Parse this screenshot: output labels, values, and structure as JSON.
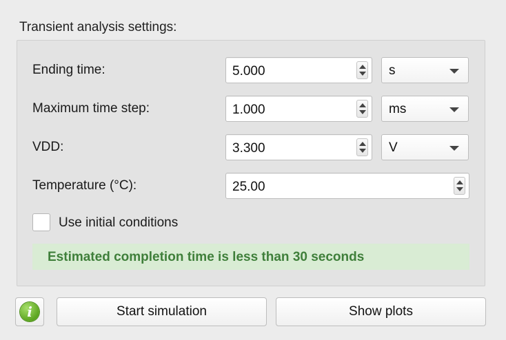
{
  "group": {
    "title": "Transient analysis settings:"
  },
  "rows": {
    "ending_time": {
      "label": "Ending time:",
      "value": "5.000",
      "unit": "s"
    },
    "max_step": {
      "label": "Maximum time step:",
      "value": "1.000",
      "unit": "ms"
    },
    "vdd": {
      "label": "VDD:",
      "value": "3.300",
      "unit": "V"
    },
    "temperature": {
      "label": "Temperature (°C):",
      "value": "25.00"
    }
  },
  "initial_conditions": {
    "label": "Use initial conditions",
    "checked": false
  },
  "estimate": {
    "text": "Estimated completion time is less than 30 seconds",
    "color": "#3f7f3a",
    "background": "#d9ecd4"
  },
  "buttons": {
    "info_icon": "info-icon",
    "start": "Start simulation",
    "plots": "Show plots"
  }
}
